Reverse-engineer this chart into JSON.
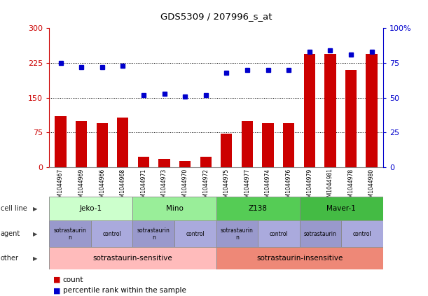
{
  "title": "GDS5309 / 207996_s_at",
  "samples": [
    "GSM1044967",
    "GSM1044969",
    "GSM1044966",
    "GSM1044968",
    "GSM1044971",
    "GSM1044973",
    "GSM1044970",
    "GSM1044972",
    "GSM1044975",
    "GSM1044977",
    "GSM1044974",
    "GSM1044976",
    "GSM1044979",
    "GSM1044981",
    "GSM1044978",
    "GSM1044980"
  ],
  "counts": [
    110,
    100,
    95,
    107,
    22,
    18,
    14,
    22,
    72,
    100,
    95,
    95,
    245,
    245,
    210,
    245
  ],
  "percentiles": [
    75,
    72,
    72,
    73,
    52,
    53,
    51,
    52,
    68,
    70,
    70,
    70,
    83,
    84,
    81,
    83
  ],
  "cell_lines": [
    {
      "label": "Jeko-1",
      "start": 0,
      "end": 4,
      "color": "#ccffcc"
    },
    {
      "label": "Mino",
      "start": 4,
      "end": 8,
      "color": "#99ee99"
    },
    {
      "label": "Z138",
      "start": 8,
      "end": 12,
      "color": "#55cc55"
    },
    {
      "label": "Maver-1",
      "start": 12,
      "end": 16,
      "color": "#44bb44"
    }
  ],
  "agents": [
    {
      "label": "sotrastaurin\nn",
      "start": 0,
      "end": 2,
      "color": "#9999cc"
    },
    {
      "label": "control",
      "start": 2,
      "end": 4,
      "color": "#aaaadd"
    },
    {
      "label": "sotrastaurin\nn",
      "start": 4,
      "end": 6,
      "color": "#9999cc"
    },
    {
      "label": "control",
      "start": 6,
      "end": 8,
      "color": "#aaaadd"
    },
    {
      "label": "sotrastaurin\nn",
      "start": 8,
      "end": 10,
      "color": "#9999cc"
    },
    {
      "label": "control",
      "start": 10,
      "end": 12,
      "color": "#aaaadd"
    },
    {
      "label": "sotrastaurin",
      "start": 12,
      "end": 14,
      "color": "#9999cc"
    },
    {
      "label": "control",
      "start": 14,
      "end": 16,
      "color": "#aaaadd"
    }
  ],
  "others": [
    {
      "label": "sotrastaurin-sensitive",
      "start": 0,
      "end": 8,
      "color": "#ffbbbb"
    },
    {
      "label": "sotrastaurin-insensitive",
      "start": 8,
      "end": 16,
      "color": "#ee8877"
    }
  ],
  "ylim_left": [
    0,
    300
  ],
  "ylim_right": [
    0,
    100
  ],
  "yticks_left": [
    0,
    75,
    150,
    225,
    300
  ],
  "yticks_right": [
    0,
    25,
    50,
    75,
    100
  ],
  "bar_color": "#cc0000",
  "dot_color": "#0000cc",
  "bg_color": "#ffffff",
  "left_axis_color": "#cc0000",
  "right_axis_color": "#0000cc",
  "grid_dotted_ticks": [
    75,
    150,
    225
  ]
}
